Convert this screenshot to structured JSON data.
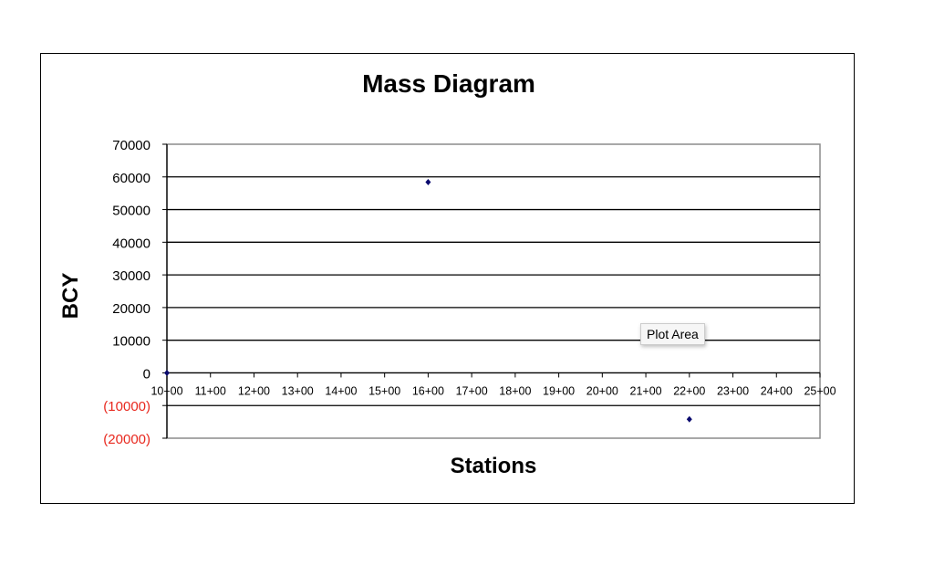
{
  "chart_data": {
    "type": "scatter",
    "title": "Mass Diagram",
    "xlabel": "Stations",
    "ylabel": "BCY",
    "xlim": [
      10,
      25
    ],
    "ylim": [
      -20000,
      70000
    ],
    "y_ticks": [
      70000,
      60000,
      50000,
      40000,
      30000,
      20000,
      10000,
      0,
      -10000,
      -20000
    ],
    "y_tick_labels": [
      "70000",
      "60000",
      "50000",
      "40000",
      "30000",
      "20000",
      "10000",
      "0",
      "(10000)",
      "(20000)"
    ],
    "x_tick_labels": [
      "10+00",
      "11+00",
      "12+00",
      "13+00",
      "14+00",
      "15+00",
      "16+00",
      "17+00",
      "18+00",
      "19+00",
      "20+00",
      "21+00",
      "22+00",
      "23+00",
      "24+00",
      "25+00"
    ],
    "grid": "horizontal major",
    "negative_label_color": "#e8281e",
    "marker_color": "#0a0a6e",
    "marker": "diamond",
    "points": [
      {
        "x": 10,
        "y": 0
      },
      {
        "x": 16,
        "y": 58400
      },
      {
        "x": 22,
        "y": -14200
      }
    ]
  },
  "tooltip": "Plot Area"
}
